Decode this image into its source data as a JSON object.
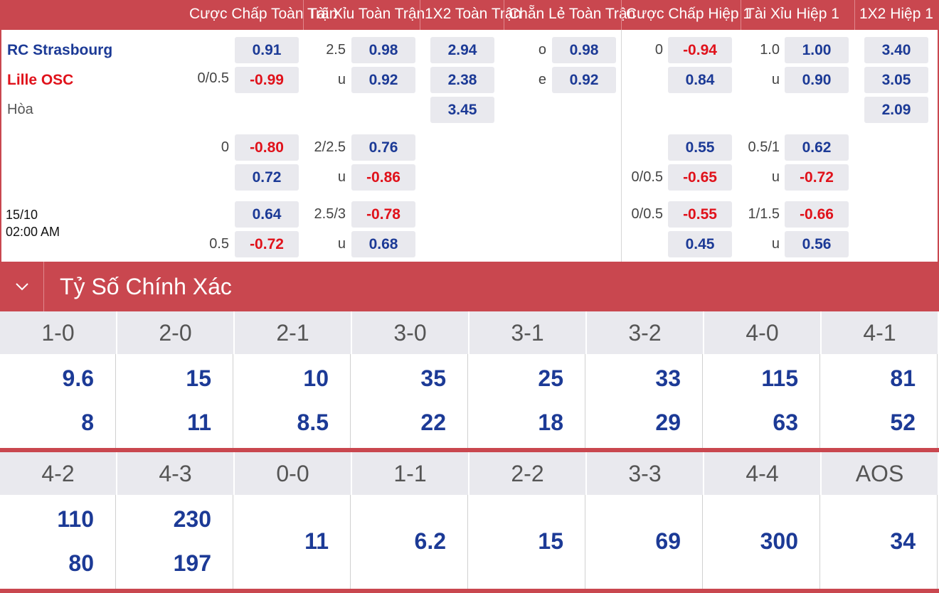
{
  "header": {
    "cols": [
      "Cược Chấp Toàn Trận",
      "Tài Xỉu Toàn Trận",
      "1X2 Toàn Trận",
      "Chẵn Lẻ Toàn Trận",
      "Cược Chấp Hiệp 1",
      "Tài Xỉu Hiệp 1",
      "1X2 Hiệp 1"
    ]
  },
  "match": {
    "home": "RC Strasbourg",
    "away": "Lille OSC",
    "draw": "Hòa",
    "date": "15/10",
    "time": "02:00 AM"
  },
  "rows": {
    "r1": {
      "ah_line": "0/0.5",
      "ah_home": "0.91",
      "ah_away": "-0.99",
      "ou_line": "2.5",
      "ou_u": "u",
      "ou_over": "0.98",
      "ou_under": "0.92",
      "x_home": "2.94",
      "x_away": "2.38",
      "x_draw": "3.45",
      "oe_o": "o",
      "oe_e": "e",
      "oe_odd": "0.98",
      "oe_even": "0.92",
      "h_ah_line": "0",
      "h_ah_home": "-0.94",
      "h_ah_away": "0.84",
      "h_ou_line": "1.0",
      "h_ou_u": "u",
      "h_ou_over": "1.00",
      "h_ou_under": "0.90",
      "h_x_home": "3.40",
      "h_x_away": "3.05",
      "h_x_draw": "2.09"
    },
    "r2": {
      "ah_line": "0",
      "ah_home": "-0.80",
      "ah_away": "0.72",
      "ou_line": "2/2.5",
      "ou_u": "u",
      "ou_over": "0.76",
      "ou_under": "-0.86",
      "h_ah_line": "0/0.5",
      "h_ah_home": "0.55",
      "h_ah_away": "-0.65",
      "h_ou_line": "0.5/1",
      "h_ou_u": "u",
      "h_ou_over": "0.62",
      "h_ou_under": "-0.72"
    },
    "r3": {
      "ah_line": "0.5",
      "ah_home": "0.64",
      "ah_away": "-0.72",
      "ou_line": "2.5/3",
      "ou_u": "u",
      "ou_over": "-0.78",
      "ou_under": "0.68",
      "h_ah_line": "0/0.5",
      "h_ah_home": "-0.55",
      "h_ah_away": "0.45",
      "h_ou_line": "1/1.5",
      "h_ou_u": "u",
      "h_ou_over": "-0.66",
      "h_ou_under": "0.56"
    }
  },
  "section": {
    "title": "Tỷ Số Chính Xác",
    "icon": "chevron-down-icon"
  },
  "scores": {
    "g1": [
      {
        "label": "1-0",
        "v1": "9.6",
        "v2": "8"
      },
      {
        "label": "2-0",
        "v1": "15",
        "v2": "11"
      },
      {
        "label": "2-1",
        "v1": "10",
        "v2": "8.5"
      },
      {
        "label": "3-0",
        "v1": "35",
        "v2": "22"
      },
      {
        "label": "3-1",
        "v1": "25",
        "v2": "18"
      },
      {
        "label": "3-2",
        "v1": "33",
        "v2": "29"
      },
      {
        "label": "4-0",
        "v1": "115",
        "v2": "63"
      },
      {
        "label": "4-1",
        "v1": "81",
        "v2": "52"
      }
    ],
    "g2": [
      {
        "label": "4-2",
        "v1": "110",
        "v2": "80"
      },
      {
        "label": "4-3",
        "v1": "230",
        "v2": "197"
      },
      {
        "label": "0-0",
        "v1": "11"
      },
      {
        "label": "1-1",
        "v1": "6.2"
      },
      {
        "label": "2-2",
        "v1": "15"
      },
      {
        "label": "3-3",
        "v1": "69"
      },
      {
        "label": "4-4",
        "v1": "300"
      },
      {
        "label": "AOS",
        "v1": "34"
      }
    ]
  },
  "colors": {
    "accent": "#c9474f",
    "odd_blue": "#1c3a96",
    "odd_red": "#e0121b",
    "cell_bg": "#e9e9ee"
  }
}
